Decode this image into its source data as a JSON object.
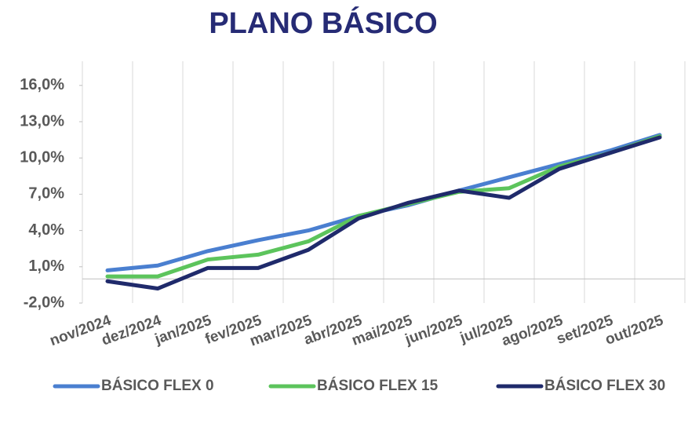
{
  "chart_data": {
    "type": "line",
    "title": "PLANO BÁSICO",
    "categories": [
      "nov/2024",
      "dez/2024",
      "jan/2025",
      "fev/2025",
      "mar/2025",
      "abr/2025",
      "mai/2025",
      "jun/2025",
      "jul/2025",
      "ago/2025",
      "set/2025",
      "out/2025"
    ],
    "series": [
      {
        "name": "BÁSICO FLEX 0",
        "color": "#4a7fd0",
        "values": [
          0.7,
          1.1,
          2.3,
          3.2,
          4.0,
          5.2,
          6.1,
          7.3,
          8.4,
          9.5,
          10.6,
          11.9
        ]
      },
      {
        "name": "BÁSICO FLEX 15",
        "color": "#5cc45c",
        "values": [
          0.2,
          0.2,
          1.6,
          2.0,
          3.1,
          5.2,
          6.2,
          7.2,
          7.5,
          9.3,
          10.4,
          11.8
        ]
      },
      {
        "name": "BÁSICO FLEX 30",
        "color": "#1f2a6b",
        "values": [
          -0.2,
          -0.8,
          0.9,
          0.9,
          2.4,
          5.0,
          6.3,
          7.3,
          6.7,
          9.1,
          10.4,
          11.7
        ]
      }
    ],
    "ylim": [
      -2,
      18
    ],
    "yticks": [
      {
        "value": -2,
        "label": "-2,0%"
      },
      {
        "value": 1,
        "label": "1,0%"
      },
      {
        "value": 4,
        "label": "4,0%"
      },
      {
        "value": 7,
        "label": "7,0%"
      },
      {
        "value": 10,
        "label": "10,0%"
      },
      {
        "value": 13,
        "label": "13,0%"
      },
      {
        "value": 16,
        "label": "16,0%"
      }
    ],
    "grid": true,
    "legend": "bottom"
  }
}
